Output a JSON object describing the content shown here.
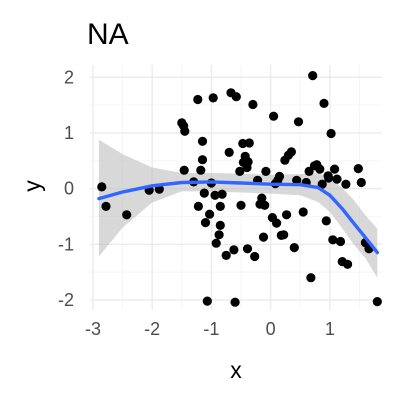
{
  "chart_data": {
    "type": "scatter",
    "title": "NA",
    "xlabel": "x",
    "ylabel": "y",
    "xlim": [
      -3.05,
      1.88
    ],
    "ylim": [
      -2.18,
      2.22
    ],
    "x_ticks": [
      -3,
      -2,
      -1,
      0,
      1
    ],
    "y_ticks": [
      -2,
      -1,
      0,
      1,
      2
    ],
    "grid": true,
    "legend": "none",
    "colors": {
      "points": "#000000",
      "smooth_line": "#3366ff",
      "confidence_band": "#bebebe",
      "grid_major": "#ebebeb",
      "grid_minor": "#f5f5f5"
    },
    "points": [
      [
        -2.85,
        0.03
      ],
      [
        -2.78,
        -0.32
      ],
      [
        -2.43,
        -0.47
      ],
      [
        -2.05,
        -0.03
      ],
      [
        -1.88,
        -0.01
      ],
      [
        -1.5,
        1.18
      ],
      [
        -1.47,
        1.13
      ],
      [
        -1.46,
        0.33
      ],
      [
        -1.45,
        1.03
      ],
      [
        -1.3,
        0.12
      ],
      [
        -1.23,
        1.6
      ],
      [
        -1.22,
        -0.32
      ],
      [
        -1.18,
        0.33
      ],
      [
        -1.15,
        0.85
      ],
      [
        -1.15,
        0.52
      ],
      [
        -1.12,
        -0.08
      ],
      [
        -1.1,
        -0.61
      ],
      [
        -1.07,
        -2.02
      ],
      [
        -1.03,
        -0.46
      ],
      [
        -1.0,
        0.1
      ],
      [
        -0.97,
        1.63
      ],
      [
        -0.94,
        -0.12
      ],
      [
        -0.92,
        -0.98
      ],
      [
        -0.87,
        -0.83
      ],
      [
        -0.85,
        -0.66
      ],
      [
        -0.85,
        -0.32
      ],
      [
        -0.82,
        -0.1
      ],
      [
        -0.75,
        -1.2
      ],
      [
        -0.7,
        0.65
      ],
      [
        -0.67,
        1.72
      ],
      [
        -0.62,
        -1.1
      ],
      [
        -0.6,
        -2.04
      ],
      [
        -0.58,
        1.65
      ],
      [
        -0.52,
        0.31
      ],
      [
        -0.5,
        -0.3
      ],
      [
        -0.47,
        0.81
      ],
      [
        -0.46,
        0.47
      ],
      [
        -0.43,
        0.58
      ],
      [
        -0.4,
        0.38
      ],
      [
        -0.39,
        -1.08
      ],
      [
        -0.38,
        0.48
      ],
      [
        -0.36,
        0.82
      ],
      [
        -0.3,
        1.51
      ],
      [
        -0.27,
        -1.22
      ],
      [
        -0.22,
        0.15
      ],
      [
        -0.18,
        -0.28
      ],
      [
        -0.15,
        -0.17
      ],
      [
        -0.12,
        -0.87
      ],
      [
        -0.1,
        -0.3
      ],
      [
        -0.08,
        0.31
      ],
      [
        0.03,
        -0.52
      ],
      [
        0.05,
        1.3
      ],
      [
        0.08,
        0.09
      ],
      [
        0.1,
        -0.62
      ],
      [
        0.12,
        0.15
      ],
      [
        0.15,
        0.22
      ],
      [
        0.18,
        -0.84
      ],
      [
        0.22,
        -0.83
      ],
      [
        0.24,
        0.51
      ],
      [
        0.27,
        -0.47
      ],
      [
        0.3,
        0.6
      ],
      [
        0.35,
        0.66
      ],
      [
        0.4,
        -1.06
      ],
      [
        0.44,
        0.15
      ],
      [
        0.47,
        1.2
      ],
      [
        0.55,
        -0.42
      ],
      [
        0.6,
        0.11
      ],
      [
        0.65,
        0.31
      ],
      [
        0.68,
        -1.6
      ],
      [
        0.71,
        2.03
      ],
      [
        0.74,
        0.41
      ],
      [
        0.78,
        0.43
      ],
      [
        0.83,
        0.35
      ],
      [
        0.87,
        0.08
      ],
      [
        0.9,
        1.53
      ],
      [
        0.94,
        -0.58
      ],
      [
        0.97,
        0.23
      ],
      [
        0.98,
        0.19
      ],
      [
        1.02,
        0.99
      ],
      [
        1.05,
        -0.92
      ],
      [
        1.08,
        0.35
      ],
      [
        1.12,
        0.17
      ],
      [
        1.18,
        -0.95
      ],
      [
        1.21,
        -1.31
      ],
      [
        1.27,
        0.08
      ],
      [
        1.3,
        -1.36
      ],
      [
        1.48,
        0.36
      ],
      [
        1.53,
        0.11
      ],
      [
        1.6,
        -0.97
      ],
      [
        1.66,
        -1.08
      ],
      [
        1.8,
        -2.03
      ]
    ],
    "smooth": {
      "x": [
        -2.9,
        -2.5,
        -2.0,
        -1.5,
        -1.0,
        -0.5,
        0.0,
        0.5,
        0.8,
        1.0,
        1.2,
        1.4,
        1.6,
        1.8
      ],
      "y": [
        -0.18,
        -0.06,
        0.05,
        0.11,
        0.12,
        0.1,
        0.08,
        0.07,
        0.02,
        -0.12,
        -0.35,
        -0.62,
        -0.88,
        -1.15
      ],
      "lower": [
        -1.22,
        -0.7,
        -0.25,
        -0.05,
        -0.05,
        -0.07,
        -0.09,
        -0.12,
        -0.24,
        -0.42,
        -0.7,
        -1.0,
        -1.25,
        -1.6
      ],
      "upper": [
        0.88,
        0.62,
        0.38,
        0.28,
        0.28,
        0.27,
        0.25,
        0.26,
        0.28,
        0.18,
        0.02,
        -0.2,
        -0.48,
        -0.72
      ]
    }
  }
}
